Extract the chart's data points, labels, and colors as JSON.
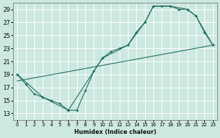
{
  "xlabel": "Humidex (Indice chaleur)",
  "bg_color": "#cce8e0",
  "grid_color": "#b0d8d0",
  "line_color": "#1a6b5a",
  "xlim": [
    -0.5,
    23.5
  ],
  "ylim": [
    12,
    30
  ],
  "xticks": [
    0,
    1,
    2,
    3,
    4,
    5,
    6,
    7,
    8,
    9,
    10,
    11,
    12,
    13,
    14,
    15,
    16,
    17,
    18,
    19,
    20,
    21,
    22,
    23
  ],
  "yticks": [
    13,
    15,
    17,
    19,
    21,
    23,
    25,
    27,
    29
  ],
  "line1_x": [
    0,
    1,
    2,
    3,
    4,
    5,
    6,
    7,
    8,
    9,
    10,
    11,
    12,
    13,
    14,
    15,
    16,
    17,
    18,
    19,
    20,
    21,
    22,
    23
  ],
  "line1_y": [
    19.0,
    17.5,
    16.0,
    15.5,
    15.0,
    14.5,
    13.5,
    13.5,
    16.5,
    19.5,
    21.5,
    22.5,
    23.0,
    23.5,
    25.5,
    27.0,
    29.5,
    29.5,
    29.5,
    29.0,
    29.0,
    28.0,
    25.5,
    23.5
  ],
  "line2_x": [
    0,
    3,
    6,
    10,
    13,
    15,
    16,
    18,
    20,
    21,
    23
  ],
  "line2_y": [
    19.0,
    15.5,
    13.5,
    21.5,
    23.5,
    27.0,
    29.5,
    29.5,
    29.0,
    28.0,
    23.5
  ],
  "line3_x": [
    0,
    23
  ],
  "line3_y": [
    18.0,
    23.5
  ]
}
